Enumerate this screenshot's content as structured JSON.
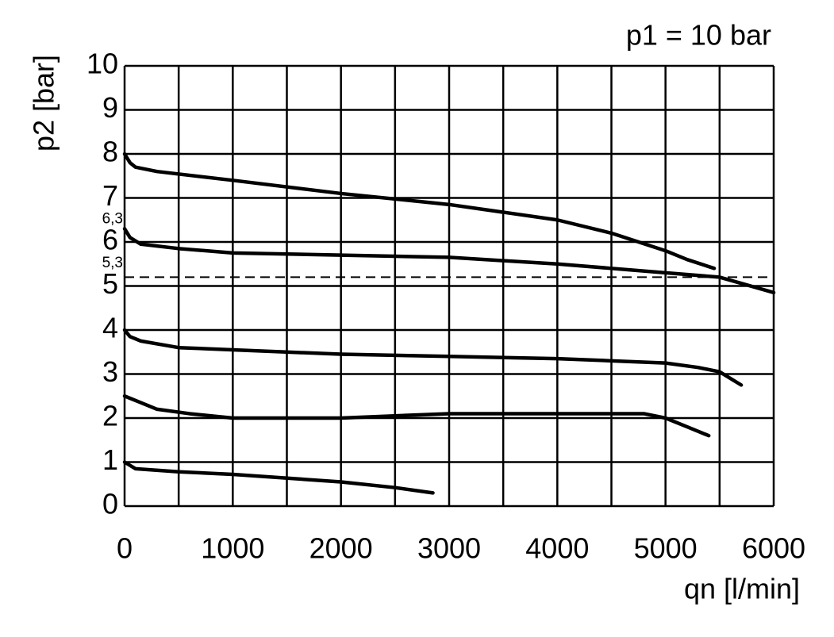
{
  "chart_data": {
    "type": "line",
    "title": "p1 = 10 bar",
    "y_label": "p2 [bar]",
    "x_label": "qn [l/min]",
    "xlim": [
      0,
      6000
    ],
    "ylim": [
      0,
      10
    ],
    "xticks": [
      0,
      1000,
      2000,
      3000,
      4000,
      5000,
      6000
    ],
    "yticks": [
      0,
      1,
      2,
      3,
      4,
      5,
      6,
      7,
      8,
      9,
      10
    ],
    "x_minor_grid": [
      500,
      1500,
      2500,
      3500,
      4500,
      5500
    ],
    "grid": true,
    "reference_line": 5.2,
    "annotations": [
      {
        "text": "6,3",
        "y": 6.3
      },
      {
        "text": "5,3",
        "y": 5.3
      }
    ],
    "series": [
      {
        "color": "#000000",
        "x": [
          0,
          50,
          100,
          300,
          1000,
          2000,
          3000,
          4000,
          4500,
          5000,
          5200,
          5450
        ],
        "values": [
          8.0,
          7.8,
          7.7,
          7.6,
          7.4,
          7.1,
          6.85,
          6.5,
          6.2,
          5.8,
          5.6,
          5.4
        ]
      },
      {
        "color": "#000000",
        "x": [
          0,
          50,
          150,
          500,
          1000,
          2000,
          3000,
          4000,
          5000,
          5500,
          6000
        ],
        "values": [
          6.3,
          6.1,
          5.95,
          5.85,
          5.75,
          5.7,
          5.65,
          5.5,
          5.3,
          5.2,
          4.85
        ]
      },
      {
        "color": "#000000",
        "x": [
          0,
          50,
          150,
          500,
          1000,
          2000,
          3000,
          4000,
          4500,
          5000,
          5300,
          5500,
          5600,
          5700
        ],
        "values": [
          4.0,
          3.85,
          3.75,
          3.6,
          3.55,
          3.45,
          3.4,
          3.35,
          3.3,
          3.25,
          3.15,
          3.05,
          2.9,
          2.75
        ]
      },
      {
        "color": "#000000",
        "x": [
          0,
          150,
          300,
          600,
          1000,
          2000,
          3000,
          4000,
          4800,
          5000,
          5200,
          5400
        ],
        "values": [
          2.5,
          2.35,
          2.2,
          2.1,
          2.0,
          2.0,
          2.1,
          2.1,
          2.1,
          2.0,
          1.8,
          1.6
        ]
      },
      {
        "color": "#000000",
        "x": [
          0,
          100,
          500,
          1000,
          2000,
          2500,
          2850
        ],
        "values": [
          1.0,
          0.85,
          0.78,
          0.72,
          0.55,
          0.42,
          0.3
        ]
      }
    ]
  }
}
